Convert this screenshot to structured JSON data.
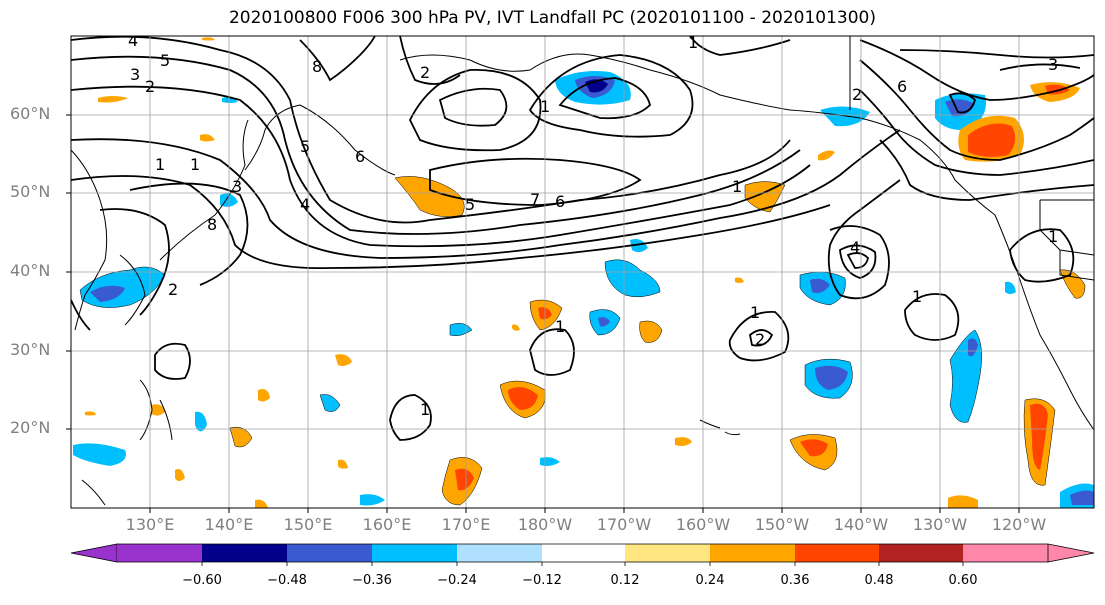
{
  "title": "2020100800 F006 300 hPa PV, IVT Landfall PC (2020101100 - 2020101300)",
  "lat_labels": [
    "60°N",
    "50°N",
    "40°N",
    "30°N",
    "20°N"
  ],
  "lon_labels": [
    "130°E",
    "140°E",
    "150°E",
    "160°E",
    "170°E",
    "180°W",
    "170°W",
    "160°W",
    "150°W",
    "140°W",
    "130°W",
    "120°W"
  ],
  "colorbar": {
    "ticks": [
      "−0.60",
      "−0.48",
      "−0.36",
      "−0.24",
      "−0.12",
      "0.12",
      "0.24",
      "0.36",
      "0.48",
      "0.60"
    ],
    "colors": [
      "#9932cc",
      "#00008b",
      "#3a5bd0",
      "#00bfff",
      "#b0e0ff",
      "#ffffff",
      "#ffe680",
      "#ffa500",
      "#ff4500",
      "#b22222",
      "#ff88aa"
    ]
  },
  "contour_labels": [
    "4",
    "5",
    "3",
    "2",
    "8",
    "2",
    "1",
    "5",
    "1",
    "7",
    "6",
    "4",
    "1",
    "8",
    "6",
    "2",
    "3",
    "5",
    "2",
    "1",
    "1",
    "2",
    "1",
    "1",
    "1",
    "3",
    "6",
    "4",
    "1",
    "1"
  ],
  "colors": {
    "contour": "#000000",
    "grid": "#a0a0a0",
    "coast": "#000000",
    "tick_label": "#808080"
  }
}
